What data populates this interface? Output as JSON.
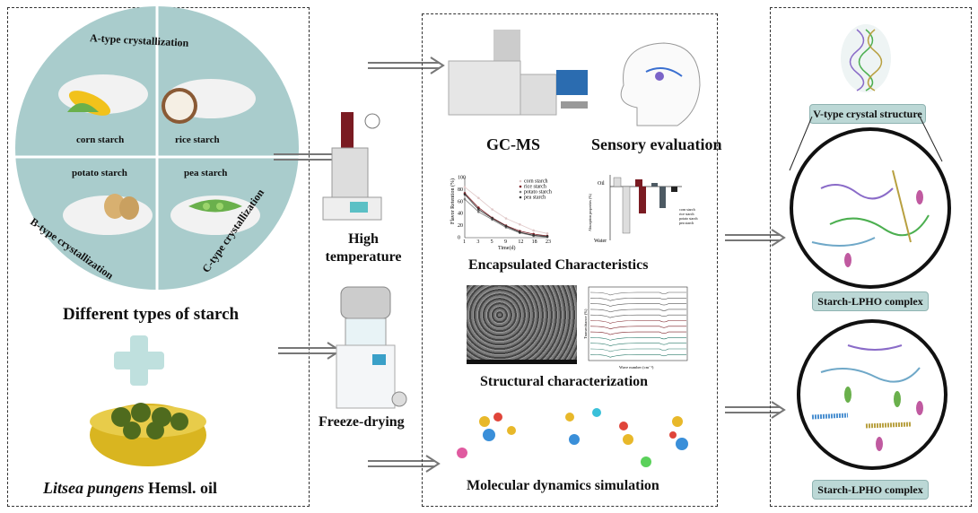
{
  "left": {
    "quadrants": {
      "a_type": "A-type crystallization",
      "b_type": "B-type crystallization",
      "c_type": "C-type crystallization"
    },
    "starches": [
      "corn starch",
      "rice starch",
      "potato starch",
      "pea starch"
    ],
    "title": "Different types of starch",
    "oil_italic": "Litsea pungens",
    "oil_rest": " Hemsl. oil"
  },
  "process": {
    "high_temp": "High temperature",
    "freeze": "Freeze-drying"
  },
  "middle": {
    "gcms": "GC-MS",
    "sensory": "Sensory evaluation",
    "encap": "Encapsulated Characteristics",
    "struct": "Structural characterization",
    "md": "Molecular dynamics simulation",
    "line_chart": {
      "ylabel": "Flavor Retention (%)",
      "xlabel": "Time(d)",
      "x": [
        1,
        3,
        5,
        9,
        12,
        18,
        23
      ],
      "yticks": [
        0,
        20,
        40,
        60,
        80,
        100
      ],
      "series": [
        {
          "name": "corn starch",
          "values": [
            84,
            66,
            47,
            32,
            22,
            12,
            7
          ]
        },
        {
          "name": "rice starch",
          "values": [
            74,
            50,
            33,
            20,
            11,
            6,
            3
          ]
        },
        {
          "name": "potato starch",
          "values": [
            64,
            43,
            30,
            17,
            8,
            3,
            1
          ]
        },
        {
          "name": "pea starch",
          "values": [
            72,
            47,
            32,
            19,
            9,
            4,
            2
          ]
        }
      ]
    },
    "bar_chart": {
      "ylabel": "Absorption properties (%)",
      "top_label": "Oil",
      "bottom_label": "Water",
      "legend": [
        "corn starch",
        "rice starch",
        "potato starch",
        "pea starch"
      ]
    },
    "ftir": {
      "ylabel": "Transmittance (%)",
      "xlabel": "Wave number (cm⁻¹)"
    }
  },
  "right": {
    "v_type": "V-type crystal structure",
    "complex1": "Starch-LPHO complex",
    "complex2": "Starch-LPHO complex"
  },
  "colors": {
    "circle": "#a9cccc",
    "teal_pill": "#bcd8d6",
    "corn": "#f2c21b",
    "pea": "#6ab04c",
    "oil": "#d9b520",
    "rice_bar": "#7a1b22",
    "potato_bar": "#4d5a63"
  }
}
